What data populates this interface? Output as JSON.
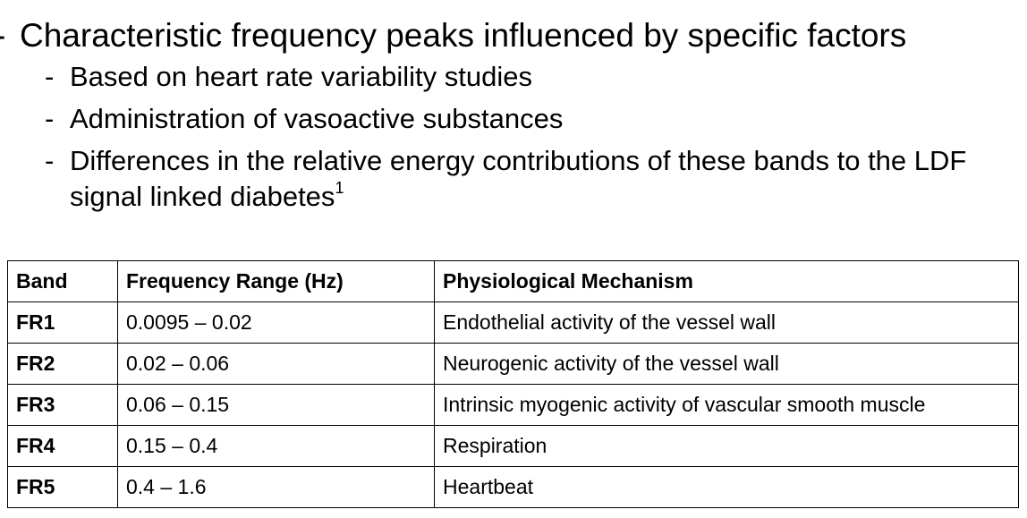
{
  "bullets": {
    "main": "Characteristic frequency peaks influenced by specific factors",
    "sub": [
      {
        "text": "Based on heart rate variability studies",
        "sup": ""
      },
      {
        "text": "Administration of vasoactive substances",
        "sup": ""
      },
      {
        "text": "Differences in the relative energy contributions of these bands to the LDF signal linked diabetes",
        "sup": "1"
      }
    ]
  },
  "table": {
    "headers": [
      "Band",
      "Frequency Range (Hz)",
      "Physiological Mechanism"
    ],
    "rows": [
      {
        "band": "FR1",
        "range": "0.0095 – 0.02",
        "mechanism": "Endothelial activity of the vessel wall"
      },
      {
        "band": "FR2",
        "range": "0.02 – 0.06",
        "mechanism": "Neurogenic activity of the vessel wall"
      },
      {
        "band": "FR3",
        "range": "0.06 – 0.15",
        "mechanism": "Intrinsic myogenic activity of vascular smooth muscle"
      },
      {
        "band": "FR4",
        "range": "0.15 – 0.4",
        "mechanism": "Respiration"
      },
      {
        "band": "FR5",
        "range": "0.4 – 1.6",
        "mechanism": "Heartbeat"
      }
    ]
  }
}
